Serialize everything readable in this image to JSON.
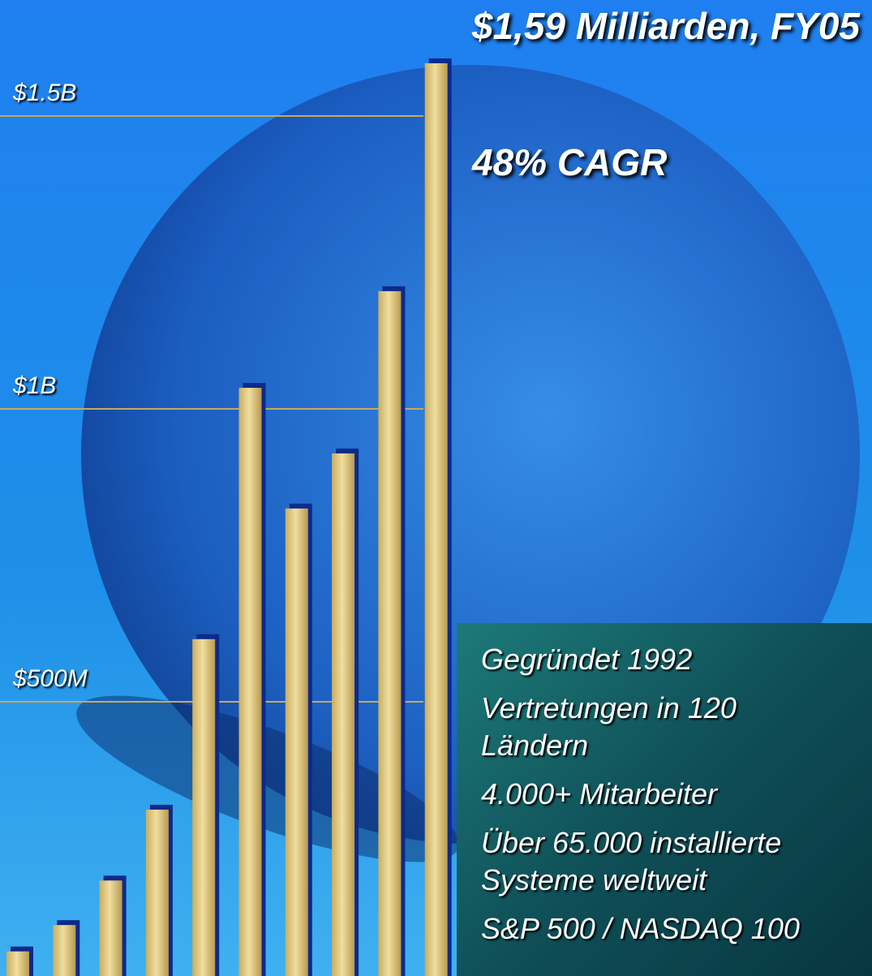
{
  "chart_data": {
    "type": "bar",
    "title": "$1,59 Milliarden, FY05",
    "annotation": "48% CAGR",
    "categories": [
      null,
      null,
      null,
      null,
      null,
      null,
      null,
      null,
      null,
      null
    ],
    "values": [
      74,
      119,
      195,
      316,
      607,
      1036,
      830,
      924,
      1201,
      1590
    ],
    "color": "#e2cc86",
    "ylim": [
      32,
      1698
    ],
    "yticks": [
      {
        "value": 500,
        "label": "$500M"
      },
      {
        "value": 1000,
        "label": "$1B"
      },
      {
        "value": 1500,
        "label": "$1.5B"
      }
    ],
    "grid": true
  },
  "facts": [
    [
      "Gegründet 1992"
    ],
    [
      "Vertretungen in 120",
      "Ländern"
    ],
    [
      "4.000+ Mitarbeiter"
    ],
    [
      "Über 65.000 installierte",
      "Systeme weltweit"
    ],
    [
      "S&P 500 / NASDAQ 100"
    ]
  ]
}
